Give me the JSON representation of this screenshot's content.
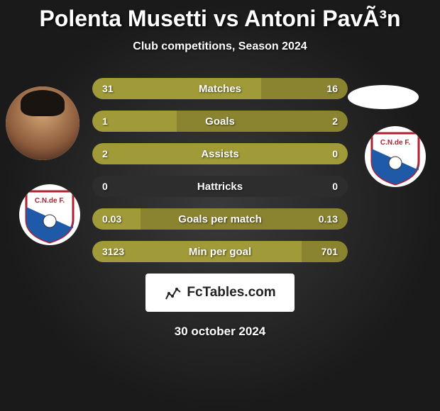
{
  "title": "Polenta Musetti vs Antoni PavÃ³n",
  "subtitle": "Club competitions, Season 2024",
  "date": "30 october 2024",
  "fctables_label": "FcTables.com",
  "colors": {
    "left_bar": "#a19a38",
    "right_bar": "#8a8330",
    "empty_bar": "#2d2d2d"
  },
  "stats": [
    {
      "label": "Matches",
      "left_val": "31",
      "right_val": "16",
      "left_pct": 66,
      "right_pct": 34
    },
    {
      "label": "Goals",
      "left_val": "1",
      "right_val": "2",
      "left_pct": 33,
      "right_pct": 67
    },
    {
      "label": "Assists",
      "left_val": "2",
      "right_val": "0",
      "left_pct": 100,
      "right_pct": 0
    },
    {
      "label": "Hattricks",
      "left_val": "0",
      "right_val": "0",
      "left_pct": 0,
      "right_pct": 0
    },
    {
      "label": "Goals per match",
      "left_val": "0.03",
      "right_val": "0.13",
      "left_pct": 19,
      "right_pct": 81
    },
    {
      "label": "Min per goal",
      "left_val": "3123",
      "right_val": "701",
      "left_pct": 82,
      "right_pct": 18
    }
  ],
  "badge": {
    "shield_fill": "#ffffff",
    "shield_border": "#b02030",
    "diagonal_fill": "#1e5aa8",
    "text": "C.N.de F.",
    "text_color": "#b02030"
  }
}
